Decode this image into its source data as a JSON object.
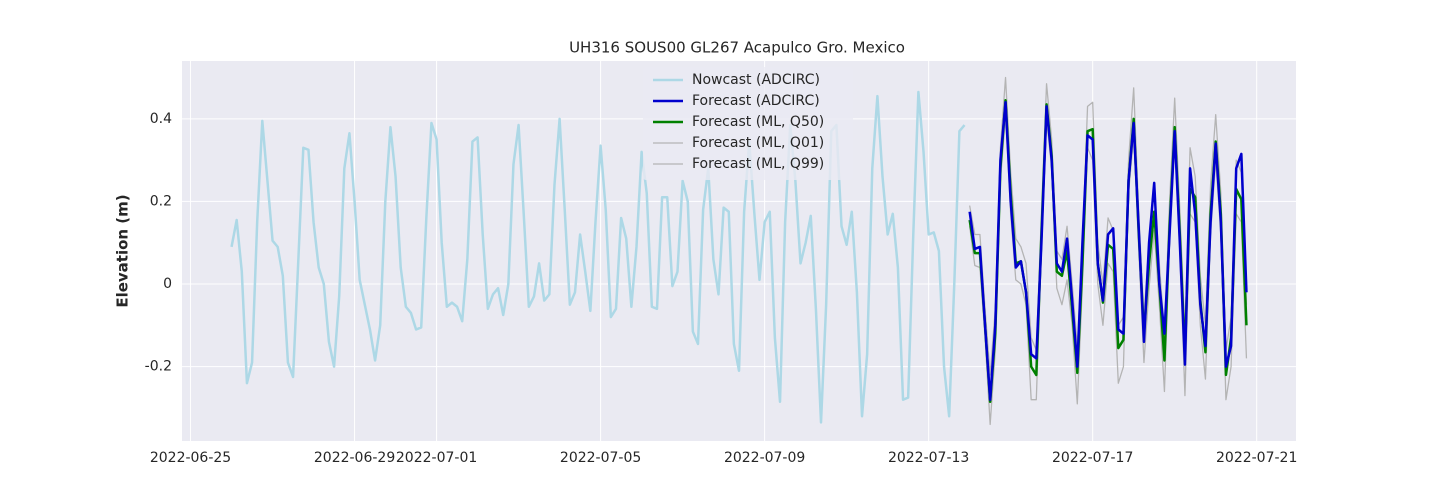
{
  "chart_data": {
    "type": "line",
    "title": "UH316 SOUS00 GL267 Acapulco Gro. Mexico",
    "y_label": "Elevation (m)",
    "xlim": [
      "2022-06-24 19:00",
      "2022-07-21 23:00"
    ],
    "xticks": [
      "2022-06-25",
      "2022-06-29",
      "2022-07-01",
      "2022-07-05",
      "2022-07-09",
      "2022-07-13",
      "2022-07-17",
      "2022-07-21"
    ],
    "ylim": [
      -0.38,
      0.54
    ],
    "yticks": [
      -0.2,
      0.0,
      0.2,
      0.4
    ],
    "grid": true,
    "legend": "upper center",
    "series": [
      {
        "name": "Nowcast (ADCIRC)",
        "color": "#add8e6",
        "linewidth": 2.5,
        "x": [
          "2022-06-26 00:00",
          "2022-06-26 03:00",
          "2022-06-26 06:00",
          "2022-06-26 09:00",
          "2022-06-26 12:00",
          "2022-06-26 15:00",
          "2022-06-26 18:00",
          "2022-06-26 21:00",
          "2022-06-27 00:00",
          "2022-06-27 03:00",
          "2022-06-27 06:00",
          "2022-06-27 09:00",
          "2022-06-27 12:00",
          "2022-06-27 15:00",
          "2022-06-27 18:00",
          "2022-06-27 21:00",
          "2022-06-28 00:00",
          "2022-06-28 03:00",
          "2022-06-28 06:00",
          "2022-06-28 09:00",
          "2022-06-28 12:00",
          "2022-06-28 15:00",
          "2022-06-28 18:00",
          "2022-06-28 21:00",
          "2022-06-29 00:00",
          "2022-06-29 03:00",
          "2022-06-29 06:00",
          "2022-06-29 09:00",
          "2022-06-29 12:00",
          "2022-06-29 15:00",
          "2022-06-29 18:00",
          "2022-06-29 21:00",
          "2022-06-30 00:00",
          "2022-06-30 03:00",
          "2022-06-30 06:00",
          "2022-06-30 09:00",
          "2022-06-30 12:00",
          "2022-06-30 15:00",
          "2022-06-30 18:00",
          "2022-06-30 21:00",
          "2022-07-01 00:00",
          "2022-07-01 03:00",
          "2022-07-01 06:00",
          "2022-07-01 09:00",
          "2022-07-01 12:00",
          "2022-07-01 15:00",
          "2022-07-01 18:00",
          "2022-07-01 21:00",
          "2022-07-02 00:00",
          "2022-07-02 03:00",
          "2022-07-02 06:00",
          "2022-07-02 09:00",
          "2022-07-02 12:00",
          "2022-07-02 15:00",
          "2022-07-02 18:00",
          "2022-07-02 21:00",
          "2022-07-03 00:00",
          "2022-07-03 03:00",
          "2022-07-03 06:00",
          "2022-07-03 09:00",
          "2022-07-03 12:00",
          "2022-07-03 15:00",
          "2022-07-03 18:00",
          "2022-07-03 21:00",
          "2022-07-04 00:00",
          "2022-07-04 03:00",
          "2022-07-04 06:00",
          "2022-07-04 09:00",
          "2022-07-04 12:00",
          "2022-07-04 15:00",
          "2022-07-04 18:00",
          "2022-07-04 21:00",
          "2022-07-05 00:00",
          "2022-07-05 03:00",
          "2022-07-05 06:00",
          "2022-07-05 09:00",
          "2022-07-05 12:00",
          "2022-07-05 15:00",
          "2022-07-05 18:00",
          "2022-07-05 21:00",
          "2022-07-06 00:00",
          "2022-07-06 03:00",
          "2022-07-06 06:00",
          "2022-07-06 09:00",
          "2022-07-06 12:00",
          "2022-07-06 15:00",
          "2022-07-06 18:00",
          "2022-07-06 21:00",
          "2022-07-07 00:00",
          "2022-07-07 03:00",
          "2022-07-07 06:00",
          "2022-07-07 09:00",
          "2022-07-07 12:00",
          "2022-07-07 15:00",
          "2022-07-07 18:00",
          "2022-07-07 21:00",
          "2022-07-08 00:00",
          "2022-07-08 03:00",
          "2022-07-08 06:00",
          "2022-07-08 09:00",
          "2022-07-08 12:00",
          "2022-07-08 15:00",
          "2022-07-08 18:00",
          "2022-07-08 21:00",
          "2022-07-09 00:00",
          "2022-07-09 03:00",
          "2022-07-09 06:00",
          "2022-07-09 09:00",
          "2022-07-09 12:00",
          "2022-07-09 15:00",
          "2022-07-09 18:00",
          "2022-07-09 21:00",
          "2022-07-10 00:00",
          "2022-07-10 03:00",
          "2022-07-10 06:00",
          "2022-07-10 09:00",
          "2022-07-10 12:00",
          "2022-07-10 15:00",
          "2022-07-10 18:00",
          "2022-07-10 21:00",
          "2022-07-11 00:00",
          "2022-07-11 03:00",
          "2022-07-11 06:00",
          "2022-07-11 09:00",
          "2022-07-11 12:00",
          "2022-07-11 15:00",
          "2022-07-11 18:00",
          "2022-07-11 21:00",
          "2022-07-12 00:00",
          "2022-07-12 03:00",
          "2022-07-12 06:00",
          "2022-07-12 09:00",
          "2022-07-12 12:00",
          "2022-07-12 15:00",
          "2022-07-12 18:00",
          "2022-07-12 21:00",
          "2022-07-13 00:00",
          "2022-07-13 03:00",
          "2022-07-13 06:00",
          "2022-07-13 09:00",
          "2022-07-13 12:00",
          "2022-07-13 15:00",
          "2022-07-13 18:00",
          "2022-07-13 21:00"
        ],
        "values": [
          0.09,
          0.155,
          0.03,
          -0.24,
          -0.19,
          0.15,
          0.395,
          0.25,
          0.105,
          0.09,
          0.02,
          -0.19,
          -0.225,
          0.05,
          0.33,
          0.325,
          0.15,
          0.04,
          0.0,
          -0.14,
          -0.2,
          -0.03,
          0.28,
          0.365,
          0.2,
          0.01,
          -0.05,
          -0.11,
          -0.185,
          -0.1,
          0.2,
          0.38,
          0.26,
          0.04,
          -0.055,
          -0.07,
          -0.11,
          -0.105,
          0.16,
          0.39,
          0.35,
          0.1,
          -0.055,
          -0.045,
          -0.055,
          -0.09,
          0.06,
          0.345,
          0.355,
          0.12,
          -0.06,
          -0.025,
          -0.01,
          -0.075,
          0.0,
          0.29,
          0.385,
          0.17,
          -0.055,
          -0.03,
          0.05,
          -0.04,
          -0.025,
          0.24,
          0.4,
          0.18,
          -0.05,
          -0.02,
          0.12,
          0.03,
          -0.065,
          0.15,
          0.335,
          0.18,
          -0.08,
          -0.06,
          0.16,
          0.11,
          -0.055,
          0.09,
          0.32,
          0.22,
          -0.055,
          -0.06,
          0.21,
          0.21,
          -0.005,
          0.03,
          0.25,
          0.2,
          -0.115,
          -0.145,
          0.18,
          0.28,
          0.06,
          -0.025,
          0.185,
          0.175,
          -0.145,
          -0.21,
          0.175,
          0.345,
          0.17,
          0.01,
          0.15,
          0.175,
          -0.13,
          -0.285,
          0.15,
          0.385,
          0.25,
          0.05,
          0.1,
          0.165,
          -0.06,
          -0.335,
          -0.05,
          0.37,
          0.385,
          0.14,
          0.095,
          0.175,
          -0.02,
          -0.32,
          -0.17,
          0.28,
          0.455,
          0.26,
          0.12,
          0.17,
          0.04,
          -0.28,
          -0.275,
          0.12,
          0.465,
          0.32,
          0.12,
          0.125,
          0.08,
          -0.2,
          -0.32,
          0.0,
          0.37,
          0.385
        ]
      },
      {
        "name": "Forecast (ADCIRC)",
        "color": "#0000cd",
        "linewidth": 2.5,
        "x": [
          "2022-07-14 00:00",
          "2022-07-14 03:00",
          "2022-07-14 06:00",
          "2022-07-14 09:00",
          "2022-07-14 12:00",
          "2022-07-14 15:00",
          "2022-07-14 18:00",
          "2022-07-14 21:00",
          "2022-07-15 00:00",
          "2022-07-15 03:00",
          "2022-07-15 06:00",
          "2022-07-15 09:00",
          "2022-07-15 12:00",
          "2022-07-15 15:00",
          "2022-07-15 18:00",
          "2022-07-15 21:00",
          "2022-07-16 00:00",
          "2022-07-16 03:00",
          "2022-07-16 06:00",
          "2022-07-16 09:00",
          "2022-07-16 12:00",
          "2022-07-16 15:00",
          "2022-07-16 18:00",
          "2022-07-16 21:00",
          "2022-07-17 00:00",
          "2022-07-17 03:00",
          "2022-07-17 06:00",
          "2022-07-17 09:00",
          "2022-07-17 12:00",
          "2022-07-17 15:00",
          "2022-07-17 18:00",
          "2022-07-17 21:00",
          "2022-07-18 00:00",
          "2022-07-18 03:00",
          "2022-07-18 06:00",
          "2022-07-18 09:00",
          "2022-07-18 12:00",
          "2022-07-18 15:00",
          "2022-07-18 18:00",
          "2022-07-18 21:00",
          "2022-07-19 00:00",
          "2022-07-19 03:00",
          "2022-07-19 06:00",
          "2022-07-19 09:00",
          "2022-07-19 12:00",
          "2022-07-19 15:00",
          "2022-07-19 18:00",
          "2022-07-19 21:00",
          "2022-07-20 00:00",
          "2022-07-20 03:00",
          "2022-07-20 06:00",
          "2022-07-20 09:00",
          "2022-07-20 12:00",
          "2022-07-20 15:00",
          "2022-07-20 18:00"
        ],
        "values": [
          0.175,
          0.085,
          0.09,
          -0.1,
          -0.28,
          -0.1,
          0.3,
          0.44,
          0.2,
          0.04,
          0.055,
          -0.02,
          -0.17,
          -0.18,
          0.1,
          0.43,
          0.3,
          0.05,
          0.03,
          0.11,
          -0.04,
          -0.2,
          0.1,
          0.36,
          0.35,
          0.05,
          -0.04,
          0.12,
          0.135,
          -0.11,
          -0.12,
          0.25,
          0.39,
          0.13,
          -0.14,
          0.1,
          0.245,
          0.0,
          -0.12,
          0.12,
          0.37,
          0.1,
          -0.195,
          0.28,
          0.17,
          -0.05,
          -0.15,
          0.15,
          0.34,
          0.15,
          -0.2,
          -0.15,
          0.28,
          0.315,
          -0.02
        ]
      },
      {
        "name": "Forecast (ML, Q50)",
        "color": "#008000",
        "linewidth": 2.5,
        "x": [
          "2022-07-14 00:00",
          "2022-07-14 03:00",
          "2022-07-14 06:00",
          "2022-07-14 09:00",
          "2022-07-14 12:00",
          "2022-07-14 15:00",
          "2022-07-14 18:00",
          "2022-07-14 21:00",
          "2022-07-15 00:00",
          "2022-07-15 03:00",
          "2022-07-15 06:00",
          "2022-07-15 09:00",
          "2022-07-15 12:00",
          "2022-07-15 15:00",
          "2022-07-15 18:00",
          "2022-07-15 21:00",
          "2022-07-16 00:00",
          "2022-07-16 03:00",
          "2022-07-16 06:00",
          "2022-07-16 09:00",
          "2022-07-16 12:00",
          "2022-07-16 15:00",
          "2022-07-16 18:00",
          "2022-07-16 21:00",
          "2022-07-17 00:00",
          "2022-07-17 03:00",
          "2022-07-17 06:00",
          "2022-07-17 09:00",
          "2022-07-17 12:00",
          "2022-07-17 15:00",
          "2022-07-17 18:00",
          "2022-07-17 21:00",
          "2022-07-18 00:00",
          "2022-07-18 03:00",
          "2022-07-18 06:00",
          "2022-07-18 09:00",
          "2022-07-18 12:00",
          "2022-07-18 15:00",
          "2022-07-18 18:00",
          "2022-07-18 21:00",
          "2022-07-19 00:00",
          "2022-07-19 03:00",
          "2022-07-19 06:00",
          "2022-07-19 09:00",
          "2022-07-19 12:00",
          "2022-07-19 15:00",
          "2022-07-19 18:00",
          "2022-07-19 21:00",
          "2022-07-20 00:00",
          "2022-07-20 03:00",
          "2022-07-20 06:00",
          "2022-07-20 09:00",
          "2022-07-20 12:00",
          "2022-07-20 15:00",
          "2022-07-20 18:00"
        ],
        "values": [
          0.155,
          0.075,
          0.075,
          -0.1,
          -0.285,
          -0.12,
          0.28,
          0.445,
          0.22,
          0.05,
          0.055,
          -0.02,
          -0.2,
          -0.22,
          0.12,
          0.435,
          0.31,
          0.03,
          0.02,
          0.08,
          -0.06,
          -0.215,
          0.05,
          0.37,
          0.375,
          0.05,
          -0.045,
          0.095,
          0.085,
          -0.155,
          -0.135,
          0.25,
          0.4,
          0.12,
          -0.12,
          0.05,
          0.175,
          0.0,
          -0.185,
          0.14,
          0.38,
          0.12,
          -0.17,
          0.23,
          0.21,
          -0.04,
          -0.165,
          0.17,
          0.345,
          0.17,
          -0.22,
          -0.13,
          0.23,
          0.205,
          -0.1
        ]
      },
      {
        "name": "Forecast (ML, Q01)",
        "color": "#b4b4b4",
        "linewidth": 1.3,
        "x": [
          "2022-07-14 00:00",
          "2022-07-14 03:00",
          "2022-07-14 06:00",
          "2022-07-14 09:00",
          "2022-07-14 12:00",
          "2022-07-14 15:00",
          "2022-07-14 18:00",
          "2022-07-14 21:00",
          "2022-07-15 00:00",
          "2022-07-15 03:00",
          "2022-07-15 06:00",
          "2022-07-15 09:00",
          "2022-07-15 12:00",
          "2022-07-15 15:00",
          "2022-07-15 18:00",
          "2022-07-15 21:00",
          "2022-07-16 00:00",
          "2022-07-16 03:00",
          "2022-07-16 06:00",
          "2022-07-16 09:00",
          "2022-07-16 12:00",
          "2022-07-16 15:00",
          "2022-07-16 18:00",
          "2022-07-16 21:00",
          "2022-07-17 00:00",
          "2022-07-17 03:00",
          "2022-07-17 06:00",
          "2022-07-17 09:00",
          "2022-07-17 12:00",
          "2022-07-17 15:00",
          "2022-07-17 18:00",
          "2022-07-17 21:00",
          "2022-07-18 00:00",
          "2022-07-18 03:00",
          "2022-07-18 06:00",
          "2022-07-18 09:00",
          "2022-07-18 12:00",
          "2022-07-18 15:00",
          "2022-07-18 18:00",
          "2022-07-18 21:00",
          "2022-07-19 00:00",
          "2022-07-19 03:00",
          "2022-07-19 06:00",
          "2022-07-19 09:00",
          "2022-07-19 12:00",
          "2022-07-19 15:00",
          "2022-07-19 18:00",
          "2022-07-19 21:00",
          "2022-07-20 00:00",
          "2022-07-20 03:00",
          "2022-07-20 06:00",
          "2022-07-20 09:00",
          "2022-07-20 12:00",
          "2022-07-20 15:00",
          "2022-07-20 18:00"
        ],
        "values": [
          0.14,
          0.045,
          0.04,
          -0.13,
          -0.34,
          -0.16,
          0.25,
          0.41,
          0.17,
          0.01,
          0.0,
          -0.05,
          -0.28,
          -0.28,
          0.08,
          0.4,
          0.28,
          -0.01,
          -0.05,
          0.01,
          -0.1,
          -0.29,
          0.0,
          0.33,
          0.3,
          0.0,
          -0.1,
          0.05,
          0.03,
          -0.24,
          -0.2,
          0.22,
          0.36,
          0.08,
          -0.19,
          -0.01,
          0.13,
          -0.05,
          -0.26,
          0.1,
          0.34,
          0.08,
          -0.27,
          0.17,
          0.15,
          -0.1,
          -0.23,
          0.12,
          0.3,
          0.12,
          -0.28,
          -0.2,
          0.17,
          0.15,
          -0.18
        ]
      },
      {
        "name": "Forecast (ML, Q99)",
        "color": "#b4b4b4",
        "linewidth": 1.3,
        "x": [
          "2022-07-14 00:00",
          "2022-07-14 03:00",
          "2022-07-14 06:00",
          "2022-07-14 09:00",
          "2022-07-14 12:00",
          "2022-07-14 15:00",
          "2022-07-14 18:00",
          "2022-07-14 21:00",
          "2022-07-15 00:00",
          "2022-07-15 03:00",
          "2022-07-15 06:00",
          "2022-07-15 09:00",
          "2022-07-15 12:00",
          "2022-07-15 15:00",
          "2022-07-15 18:00",
          "2022-07-15 21:00",
          "2022-07-16 00:00",
          "2022-07-16 03:00",
          "2022-07-16 06:00",
          "2022-07-16 09:00",
          "2022-07-16 12:00",
          "2022-07-16 15:00",
          "2022-07-16 18:00",
          "2022-07-16 21:00",
          "2022-07-17 00:00",
          "2022-07-17 03:00",
          "2022-07-17 06:00",
          "2022-07-17 09:00",
          "2022-07-17 12:00",
          "2022-07-17 15:00",
          "2022-07-17 18:00",
          "2022-07-17 21:00",
          "2022-07-18 00:00",
          "2022-07-18 03:00",
          "2022-07-18 06:00",
          "2022-07-18 09:00",
          "2022-07-18 12:00",
          "2022-07-18 15:00",
          "2022-07-18 18:00",
          "2022-07-18 21:00",
          "2022-07-19 00:00",
          "2022-07-19 03:00",
          "2022-07-19 06:00",
          "2022-07-19 09:00",
          "2022-07-19 12:00",
          "2022-07-19 15:00",
          "2022-07-19 18:00",
          "2022-07-19 21:00",
          "2022-07-20 00:00",
          "2022-07-20 03:00",
          "2022-07-20 06:00",
          "2022-07-20 09:00",
          "2022-07-20 12:00",
          "2022-07-20 15:00",
          "2022-07-20 18:00"
        ],
        "values": [
          0.19,
          0.12,
          0.12,
          -0.06,
          -0.22,
          -0.06,
          0.33,
          0.5,
          0.27,
          0.11,
          0.09,
          0.05,
          -0.13,
          -0.16,
          0.17,
          0.485,
          0.35,
          0.08,
          0.06,
          0.14,
          0.0,
          -0.15,
          0.1,
          0.43,
          0.44,
          0.1,
          0.0,
          0.16,
          0.13,
          -0.1,
          -0.08,
          0.3,
          0.475,
          0.17,
          -0.08,
          0.1,
          0.24,
          0.05,
          -0.12,
          0.2,
          0.45,
          0.18,
          -0.12,
          0.33,
          0.26,
          0.02,
          -0.1,
          0.24,
          0.41,
          0.22,
          -0.16,
          -0.08,
          0.3,
          0.27,
          -0.05
        ]
      }
    ]
  }
}
